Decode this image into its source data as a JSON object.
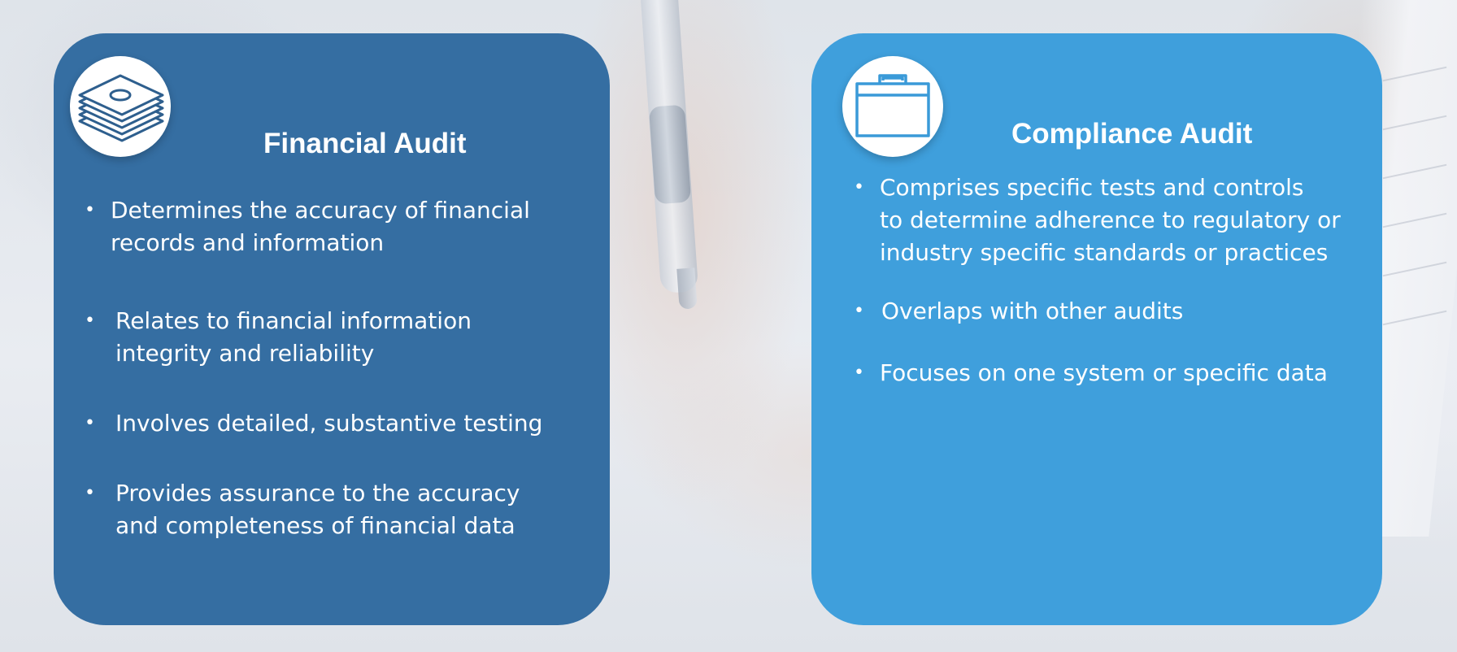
{
  "cards": [
    {
      "title": "Financial Audit",
      "icon": "money-stack-icon",
      "bullets": [
        "Determines the accuracy of financial\nrecords and information",
        "Relates to financial information\nintegrity and reliability",
        "Involves detailed, substantive testing",
        "Provides assurance to the accuracy\nand completeness of financial data"
      ],
      "color": "#356ea2"
    },
    {
      "title": "Compliance Audit",
      "icon": "briefcase-icon",
      "bullets": [
        "Comprises specific tests and controls\nto determine adherence to regulatory or\nindustry specific standards or practices",
        "Overlaps with other audits",
        "Focuses on one system or specific data"
      ],
      "color": "#3f9fdc"
    }
  ],
  "colors": {
    "text": "#ffffff",
    "icon_stroke_financial": "#2e5f8e",
    "icon_stroke_compliance": "#3a9ad8"
  }
}
